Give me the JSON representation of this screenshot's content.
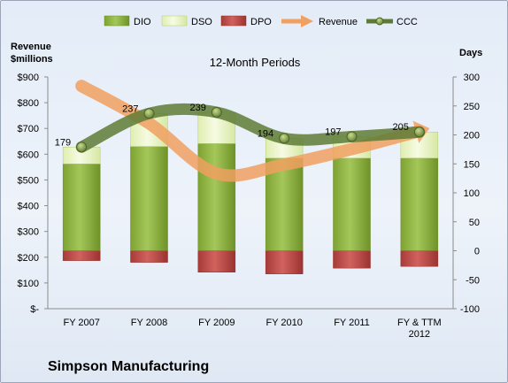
{
  "chart_data": {
    "type": "bar",
    "title": "12-Month Periods",
    "company": "Simpson Manufacturing",
    "y_left_label_line1": "Revenue",
    "y_left_label_line2": "$millions",
    "y_right_label": "Days",
    "categories": [
      "FY 2007",
      "FY 2008",
      "FY 2009",
      "FY 2010",
      "FY 2011",
      "FY & TTM 2012"
    ],
    "category_lines": [
      [
        "FY 2007"
      ],
      [
        "FY 2008"
      ],
      [
        "FY 2009"
      ],
      [
        "FY 2010"
      ],
      [
        "FY 2011"
      ],
      [
        "FY & TTM",
        "2012"
      ]
    ],
    "ylim_left": [
      0,
      900
    ],
    "left_ticks": [
      "$-",
      "$100",
      "$200",
      "$300",
      "$400",
      "$500",
      "$600",
      "$700",
      "$800",
      "$900"
    ],
    "ylim_right": [
      -100,
      300
    ],
    "right_ticks": [
      "-100",
      "-50",
      "0",
      "50",
      "100",
      "150",
      "200",
      "250",
      "300"
    ],
    "series": [
      {
        "name": "DIO",
        "axis": "right",
        "kind": "stacked-bar",
        "color": "#8db040",
        "values": [
          150,
          180,
          185,
          160,
          160,
          160
        ]
      },
      {
        "name": "DSO",
        "axis": "right",
        "kind": "stacked-bar",
        "color": "#eaf5c6",
        "values": [
          29,
          57,
          54,
          34,
          37,
          45
        ]
      },
      {
        "name": "DPO",
        "axis": "right",
        "kind": "negative-bar",
        "color": "#c0504d",
        "values": [
          -17,
          -20,
          -37,
          -40,
          -30,
          -27
        ]
      },
      {
        "name": "Revenue",
        "axis": "left",
        "kind": "line",
        "color": "#f0a060",
        "values": [
          865,
          720,
          525,
          560,
          620,
          690
        ]
      },
      {
        "name": "CCC",
        "axis": "right",
        "kind": "line",
        "color": "#5e7b36",
        "values": [
          179,
          237,
          239,
          194,
          197,
          205
        ],
        "labels": [
          "179",
          "237",
          "239",
          "194",
          "197",
          "205"
        ]
      }
    ],
    "legend_position": "top",
    "grid": false
  }
}
